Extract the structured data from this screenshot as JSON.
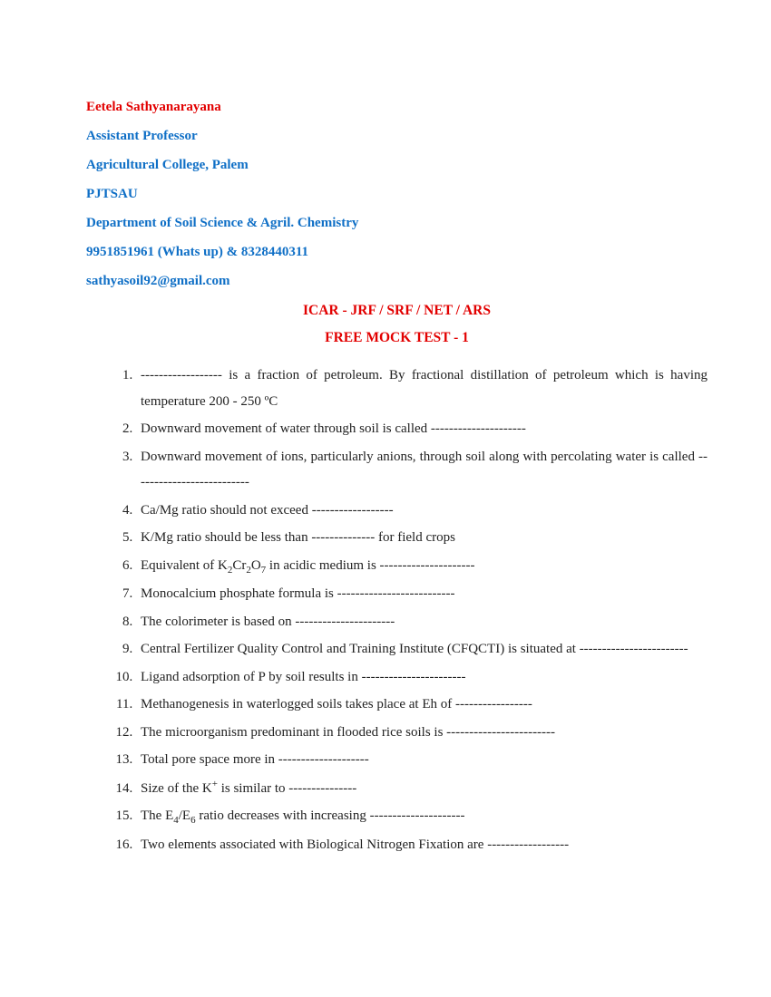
{
  "header": {
    "name": "Eetela Sathyanarayana",
    "designation": "Assistant Professor",
    "college": "Agricultural College, Palem",
    "university": "PJTSAU",
    "department": "Department of Soil Science & Agril. Chemistry",
    "phone": "9951851961 (Whats up) & 8328440311",
    "email": "sathyasoil92@gmail.com"
  },
  "titles": {
    "main": "ICAR - JRF / SRF / NET / ARS",
    "sub": "FREE MOCK TEST - 1"
  },
  "colors": {
    "red": "#e20000",
    "blue": "#0f6fc6",
    "text": "#222222",
    "background": "#ffffff"
  },
  "typography": {
    "font_family": "Times New Roman",
    "body_fontsize": 15,
    "header_fontsize": 15,
    "title_fontsize": 15.5,
    "line_height": 1.9
  },
  "questions": [
    {
      "html": "------------------ is a fraction of petroleum. By fractional distillation of petroleum which is having temperature 200 - 250 ºC"
    },
    {
      "html": "Downward movement of water through soil is called ---------------------"
    },
    {
      "html": "Downward movement of ions, particularly anions, through soil along with percolating water is called --------------------------"
    },
    {
      "html": "Ca/Mg ratio should not exceed ------------------"
    },
    {
      "html": "K/Mg ratio should be less than -------------- for field crops"
    },
    {
      "html": "Equivalent of K<sub>2</sub>Cr<sub>2</sub>O<sub>7</sub> in acidic medium is ---------------------"
    },
    {
      "html": "Monocalcium phosphate formula is --------------------------"
    },
    {
      "html": "The colorimeter is based on ----------------------"
    },
    {
      "html": "Central Fertilizer Quality Control and Training Institute (CFQCTI) is situated at ------------------------"
    },
    {
      "html": " Ligand adsorption of  P by soil results in -----------------------"
    },
    {
      "html": " Methanogenesis in waterlogged soils takes place at Eh of -----------------"
    },
    {
      "html": "The microorganism predominant in flooded rice soils is ------------------------"
    },
    {
      "html": " Total pore space more in --------------------"
    },
    {
      "html": " Size of the K<sup>+</sup> is similar to ---------------"
    },
    {
      "html": " The E<sub>4</sub>/E<sub>6</sub> ratio decreases with increasing ---------------------"
    },
    {
      "html": " Two elements associated with Biological Nitrogen Fixation are ------------------"
    }
  ]
}
